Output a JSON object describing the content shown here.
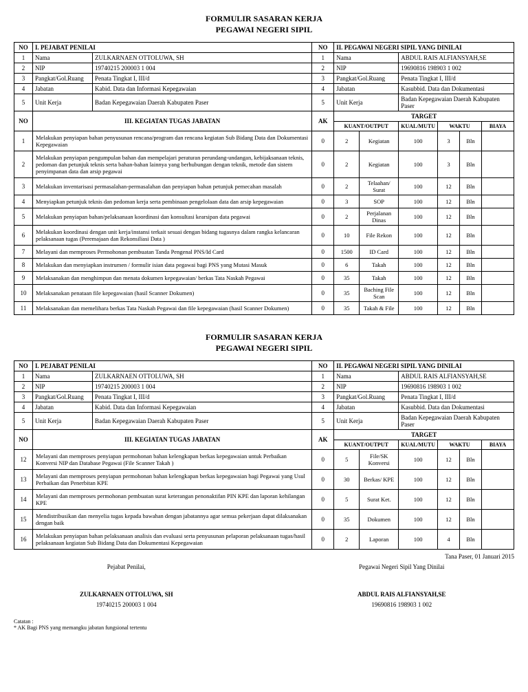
{
  "doc_title_1": "FORMULIR SASARAN KERJA",
  "doc_title_2": "PEGAWAI NEGERI SIPIL",
  "headers": {
    "no": "NO",
    "pejabat": "I. PEJABAT PENILAI",
    "pns": "II. PEGAWAI NEGERI SIPIL YANG DINILAI",
    "kegiatan": "III. KEGIATAN TUGAS JABATAN",
    "ak": "AK",
    "target": "TARGET",
    "kuant": "KUANT/OUTPUT",
    "kual": "KUAL/MUTU",
    "waktu": "WAKTU",
    "biaya": "BIAYA"
  },
  "info_labels": {
    "1": "Nama",
    "2": "NIP",
    "3": "Pangkat/Gol.Ruang",
    "4": "Jabatan",
    "5": "Unit Kerja"
  },
  "penilai": {
    "nama": "ZULKARNAEN OTTOLUWA, SH",
    "nip": "19740215 200003 1 004",
    "pangkat": "Penata Tingkat I, III/d",
    "jabatan": "Kabid. Data dan Informasi Kepegawaian",
    "unit": "Badan Kepegawaian Daerah Kabupaten Paser"
  },
  "dinilai": {
    "nama": "ABDUL RAIS ALFIANSYAH,SE",
    "nip": "19690816 198903 1 002",
    "pangkat": "Penata Tingkat I, III/d",
    "jabatan": "Kasubbid. Data dan Dokumentasi",
    "unit": "Badan Kepegawaian Daerah Kabupaten Paser"
  },
  "rows1": [
    {
      "no": "1",
      "k": "Melakukan penyiapan bahan penyusunan rencana/program dan rencana kegiatan Sub Bidang Data dan Dokumentasi Kepegawaian",
      "ak": "0",
      "q": "2",
      "u": "Kegiatan",
      "m": "100",
      "w": "3",
      "wu": "Bln",
      "b": ""
    },
    {
      "no": "2",
      "k": "Melakukan penyiapan pengumpulan bahan dan mempelajari peraturan perundang-undangan, kebijaksanaan teknis, pedoman dan petunjuk teknis serta bahan-bahan lainnya yang berhubungan dengan teknik, metode dan sistem penyimpanan data dan arsip pegawai",
      "ak": "0",
      "q": "2",
      "u": "Kegiatan",
      "m": "100",
      "w": "3",
      "wu": "Bln",
      "b": ""
    },
    {
      "no": "3",
      "k": "Melakukan inventarisasi permasalahan-permasalahan dan penyiapan bahan petunjuk pemecahan masalah",
      "ak": "0",
      "q": "2",
      "u": "Telaahan/ Surat",
      "m": "100",
      "w": "12",
      "wu": "Bln",
      "b": ""
    },
    {
      "no": "4",
      "k": "Menyiapkan petunjuk teknis dan pedoman kerja serta pembinaan pengelolaan data dan arsip kepegawaian",
      "ak": "0",
      "q": "3",
      "u": "SOP",
      "m": "100",
      "w": "12",
      "wu": "Bln",
      "b": ""
    },
    {
      "no": "5",
      "k": "Melakukan penyiapan bahan/pelaksanaan koordinasi dan konsultasi kearsipan data pegawai",
      "ak": "0",
      "q": "2",
      "u": "Perjalanan Dinas",
      "m": "100",
      "w": "12",
      "wu": "Bln",
      "b": ""
    },
    {
      "no": "6",
      "k": "Melakukan koordinasi dengan unit kerja/instansi terkait sesuai dengan bidang tugasnya dalam rangka kelancaran pelaksanaan tugas (Peremajaan dan Rekonsiliasi Data )",
      "ak": "0",
      "q": "10",
      "u": "File Rekon",
      "m": "100",
      "w": "12",
      "wu": "Bln",
      "b": ""
    },
    {
      "no": "7",
      "k": "Melayani dan memproses Permohonan pembuatan Tanda Pengenal PNS/Id Card",
      "ak": "0",
      "q": "1500",
      "u": "ID Card",
      "m": "100",
      "w": "12",
      "wu": "Bln",
      "b": ""
    },
    {
      "no": "8",
      "k": "Melakukan dan menyiapkan instrumen / formulir isian data pegawai bagi PNS yang Mutasi Masuk",
      "ak": "0",
      "q": "6",
      "u": "Takah",
      "m": "100",
      "w": "12",
      "wu": "Bln",
      "b": ""
    },
    {
      "no": "9",
      "k": "Melaksanakan dan menghimpun dan menata dokumen kepegawaian/ berkas Tata Naskah Pegawai",
      "ak": "0",
      "q": "35",
      "u": "Takah",
      "m": "100",
      "w": "12",
      "wu": "Bln",
      "b": ""
    },
    {
      "no": "10",
      "k": "Melaksanakan penataan file kepegawaian (hasil Scanner Dokumen)",
      "ak": "0",
      "q": "35",
      "u": "Baching File Scan",
      "m": "100",
      "w": "12",
      "wu": "Bln",
      "b": ""
    },
    {
      "no": "11",
      "k": "Melaksanakan dan memelihara berkas Tata Naskah Pegawai dan file kepegawaian (hasil Scanner Dokumen)",
      "ak": "0",
      "q": "35",
      "u": "Takah & File",
      "m": "100",
      "w": "12",
      "wu": "Bln",
      "b": ""
    }
  ],
  "rows2": [
    {
      "no": "12",
      "k": "Melayani dan memproses penyiapan permohonan bahan kelengkapan berkas kepegawaian untuk Perbaikan Konversi NIP dan Database Pegawai (File Scanner Takah )",
      "ak": "0",
      "q": "5",
      "u": "File/SK Konversi",
      "m": "100",
      "w": "12",
      "wu": "Bln",
      "b": ""
    },
    {
      "no": "13",
      "k": "Melayani dan memproses penyiapan permohonan bahan kelengkapan berkas kepegawaian bagi Pegawai yang Usul Perbaikan dan Penerbitan KPE",
      "ak": "0",
      "q": "30",
      "u": "Berkas/ KPE",
      "m": "100",
      "w": "12",
      "wu": "Bln",
      "b": ""
    },
    {
      "no": "14",
      "k": "Melayani dan memproses permohonan pembuatan surat keterangan penonaktifan PIN KPE dan laporan kehilangan KPE",
      "ak": "0",
      "q": "5",
      "u": "Surat Ket.",
      "m": "100",
      "w": "12",
      "wu": "Bln",
      "b": ""
    },
    {
      "no": "15",
      "k": "Mendistribusikan dan menyelia tugas kepada bawahan dengan jabatannya agar semua pekerjaan dapat dilaksanakan dengan baik",
      "ak": "0",
      "q": "35",
      "u": "Dokumen",
      "m": "100",
      "w": "12",
      "wu": "Bln",
      "b": ""
    },
    {
      "no": "16",
      "k": "Melakukan penyiapan bahan pelaksanaan analisis dan evaluasi serta penyusunan pelaporan pelaksanaan tugas/hasil pelaksanaan kegiatan Sub Bidang Data dan Dokumentasi Kepegawaian",
      "ak": "0",
      "q": "2",
      "u": "Laporan",
      "m": "100",
      "w": "4",
      "wu": "Bln",
      "b": ""
    }
  ],
  "sig": {
    "date": "Tana Paser, 01 Januari 2015",
    "left_label": "Pejabat Penilai,",
    "right_label": "Pegawai Negeri Sipil Yang Dinilai"
  },
  "note": {
    "h": "Catatan :",
    "t": "* AK Bagi PNS yang memangku jabatan fungsional tertentu"
  }
}
